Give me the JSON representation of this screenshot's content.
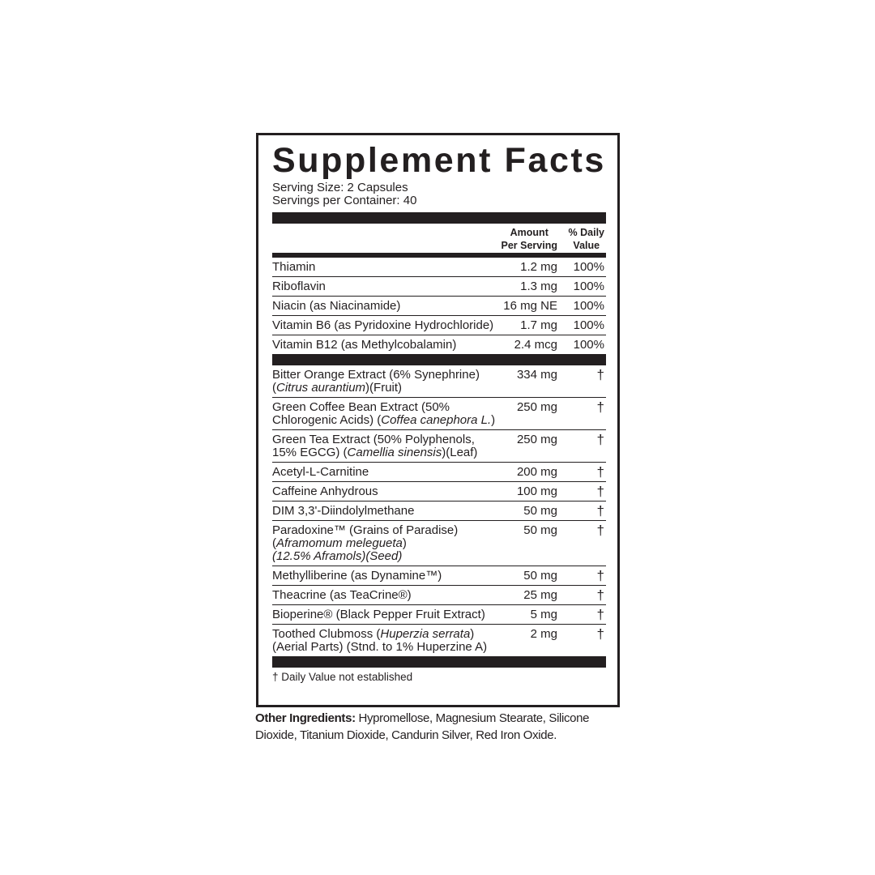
{
  "label": {
    "title": "Supplement Facts",
    "serving_size": "Serving Size: 2 Capsules",
    "servings_per_container": "Servings per Container: 40",
    "header": {
      "amount_line1": "Amount",
      "amount_line2": "Per Serving",
      "dv_line1": "% Daily",
      "dv_line2": "Value"
    },
    "vitamins": [
      {
        "name": [
          [
            {
              "t": "Thiamin"
            }
          ]
        ],
        "amount": "1.2 mg",
        "dv": "100%"
      },
      {
        "name": [
          [
            {
              "t": "Riboflavin"
            }
          ]
        ],
        "amount": "1.3 mg",
        "dv": "100%"
      },
      {
        "name": [
          [
            {
              "t": "Niacin (as Niacinamide)"
            }
          ]
        ],
        "amount": "16 mg NE",
        "dv": "100%"
      },
      {
        "name": [
          [
            {
              "t": "Vitamin B6 (as Pyridoxine Hydrochloride)"
            }
          ]
        ],
        "amount": "1.7 mg",
        "dv": "100%"
      },
      {
        "name": [
          [
            {
              "t": "Vitamin B12 (as Methylcobalamin)"
            }
          ]
        ],
        "amount": "2.4 mcg",
        "dv": "100%"
      }
    ],
    "ingredients": [
      {
        "name": [
          [
            {
              "t": "Bitter Orange Extract (6% Synephrine)"
            }
          ],
          [
            {
              "t": "("
            },
            {
              "t": "Citrus aurantium",
              "i": true
            },
            {
              "t": ")(Fruit)"
            }
          ]
        ],
        "amount": "334 mg",
        "dv": "†"
      },
      {
        "name": [
          [
            {
              "t": "Green Coffee Bean Extract (50%"
            }
          ],
          [
            {
              "t": "Chlorogenic Acids) ("
            },
            {
              "t": "Coffea canephora L.",
              "i": true
            },
            {
              "t": ")"
            }
          ]
        ],
        "amount": "250 mg",
        "dv": "†"
      },
      {
        "name": [
          [
            {
              "t": "Green Tea Extract (50% Polyphenols,"
            }
          ],
          [
            {
              "t": "15% EGCG) ("
            },
            {
              "t": "Camellia sinensis",
              "i": true
            },
            {
              "t": ")(Leaf)"
            }
          ]
        ],
        "amount": "250 mg",
        "dv": "†"
      },
      {
        "name": [
          [
            {
              "t": "Acetyl-L-Carnitine"
            }
          ]
        ],
        "amount": "200 mg",
        "dv": "†"
      },
      {
        "name": [
          [
            {
              "t": "Caffeine Anhydrous"
            }
          ]
        ],
        "amount": "100 mg",
        "dv": "†"
      },
      {
        "name": [
          [
            {
              "t": "DIM 3,3'-Diindolylmethane"
            }
          ]
        ],
        "amount": "50 mg",
        "dv": "†"
      },
      {
        "name": [
          [
            {
              "t": "Paradoxine™ (Grains of Paradise)"
            }
          ],
          [
            {
              "t": "("
            },
            {
              "t": "Aframomum melegueta",
              "i": true
            },
            {
              "t": ")"
            }
          ],
          [
            {
              "t": "(12.5% Aframols)(Seed)",
              "i": true
            }
          ]
        ],
        "amount": "50 mg",
        "dv": "†"
      },
      {
        "name": [
          [
            {
              "t": "Methylliberine (as Dynamine™)"
            }
          ]
        ],
        "amount": "50 mg",
        "dv": "†"
      },
      {
        "name": [
          [
            {
              "t": "Theacrine (as TeaCrine®)"
            }
          ]
        ],
        "amount": "25 mg",
        "dv": "†"
      },
      {
        "name": [
          [
            {
              "t": "Bioperine® (Black Pepper Fruit Extract)"
            }
          ]
        ],
        "amount": "5 mg",
        "dv": "†"
      },
      {
        "name": [
          [
            {
              "t": "Toothed Clubmoss ("
            },
            {
              "t": "Huperzia serrata",
              "i": true
            },
            {
              "t": ")"
            }
          ],
          [
            {
              "t": "(Aerial Parts) (Stnd. to 1% Huperzine A)"
            }
          ]
        ],
        "amount": "2 mg",
        "dv": "†"
      }
    ],
    "footnote": "† Daily Value not established"
  },
  "other_ingredients": {
    "label": "Other Ingredients:",
    "text": " Hypromellose, Magnesium Stearate, Silicone Dioxide, Titanium Dioxide, Candurin Silver, Red Iron Oxide."
  }
}
